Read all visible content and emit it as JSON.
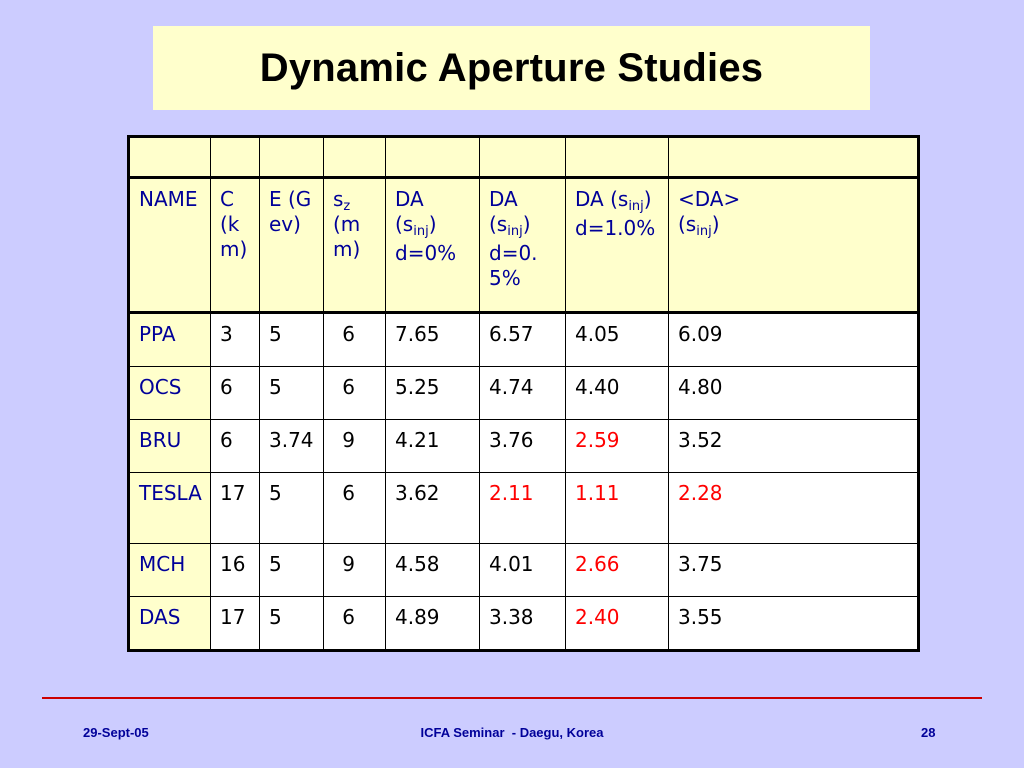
{
  "slide": {
    "title": "Dynamic Aperture Studies"
  },
  "table": {
    "headers": {
      "name": "NAME",
      "c": "C (km)",
      "e": "E (Gev)",
      "sz_base": "s",
      "sz_sub": "z",
      "sz_unit": "(mm)",
      "da0_label": "DA",
      "da0_open": "(s",
      "da0_sub": "inj",
      "da0_close": ")",
      "da0_delta": "d=0%",
      "da05_label": "DA",
      "da05_open": "(s",
      "da05_sub": "inj",
      "da05_close": ")",
      "da05_delta": "d=0.5%",
      "da1_open": "DA (s",
      "da1_sub": "inj",
      "da1_close": ")",
      "da1_delta": "d=1.0%",
      "avg_label": "<DA>",
      "avg_open": "(s",
      "avg_sub": "inj",
      "avg_close": ")"
    },
    "rows": [
      {
        "name": "PPA",
        "c": "3",
        "e": "5",
        "sz": "6",
        "da0": "7.65",
        "da05": "6.57",
        "da1": "4.05",
        "avg": "6.09"
      },
      {
        "name": "OCS",
        "c": "6",
        "e": "5",
        "sz": "6",
        "da0": "5.25",
        "da05": "4.74",
        "da1": "4.40",
        "avg": "4.80"
      },
      {
        "name": "BRU",
        "c": "6",
        "e": "3.74",
        "sz": "9",
        "da0": "4.21",
        "da05": "3.76",
        "da1": "2.59",
        "avg": "3.52"
      },
      {
        "name": "TESLA",
        "c": "17",
        "e": "5",
        "sz": "6",
        "da0": "3.62",
        "da05": "2.11",
        "da1": "1.11",
        "avg": "2.28"
      },
      {
        "name": "MCH",
        "c": "16",
        "e": "5",
        "sz": "9",
        "da0": "4.58",
        "da05": "4.01",
        "da1": "2.66",
        "avg": "3.75"
      },
      {
        "name": "DAS",
        "c": "17",
        "e": "5",
        "sz": "6",
        "da0": "4.89",
        "da05": "3.38",
        "da1": "2.40",
        "avg": "3.55"
      }
    ],
    "highlight_color": "#ff0000"
  },
  "footer": {
    "date": "29-Sept-05",
    "event": "ICFA Seminar  - Daegu, Korea",
    "page": "28"
  },
  "colors": {
    "background": "#ccccff",
    "title_box": "#ffffcc",
    "header_text": "#000099",
    "rule": "#cc0000"
  }
}
